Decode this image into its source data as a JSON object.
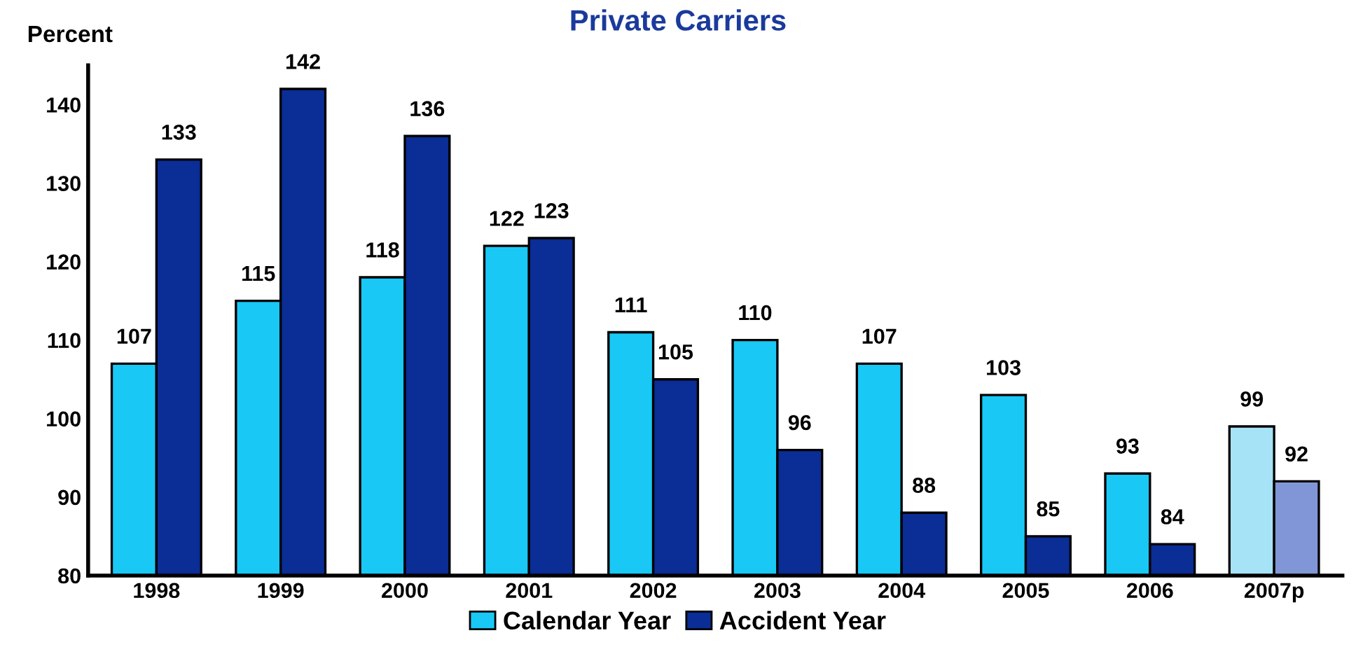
{
  "chart_data": {
    "type": "bar",
    "title": "Private Carriers",
    "ylabel": "Percent",
    "categories": [
      "1998",
      "1999",
      "2000",
      "2001",
      "2002",
      "2003",
      "2004",
      "2005",
      "2006",
      "2007p"
    ],
    "series": [
      {
        "name": "Calendar Year",
        "color": "#19c8f5",
        "colors": [
          "#19c8f5",
          "#19c8f5",
          "#19c8f5",
          "#19c8f5",
          "#19c8f5",
          "#19c8f5",
          "#19c8f5",
          "#19c8f5",
          "#19c8f5",
          "#a6e3f7"
        ],
        "values": [
          107,
          115,
          118,
          122,
          111,
          110,
          107,
          103,
          93,
          99
        ]
      },
      {
        "name": "Accident Year",
        "color": "#0a2d96",
        "colors": [
          "#0a2d96",
          "#0a2d96",
          "#0a2d96",
          "#0a2d96",
          "#0a2d96",
          "#0a2d96",
          "#0a2d96",
          "#0a2d96",
          "#0a2d96",
          "#8196d6"
        ],
        "values": [
          133,
          142,
          136,
          123,
          105,
          96,
          88,
          85,
          84,
          92
        ]
      }
    ],
    "ylim": [
      80,
      145
    ],
    "yticks": [
      80,
      90,
      100,
      110,
      120,
      130,
      140
    ],
    "data_labels": true,
    "grid": false,
    "legend": "bottom"
  }
}
